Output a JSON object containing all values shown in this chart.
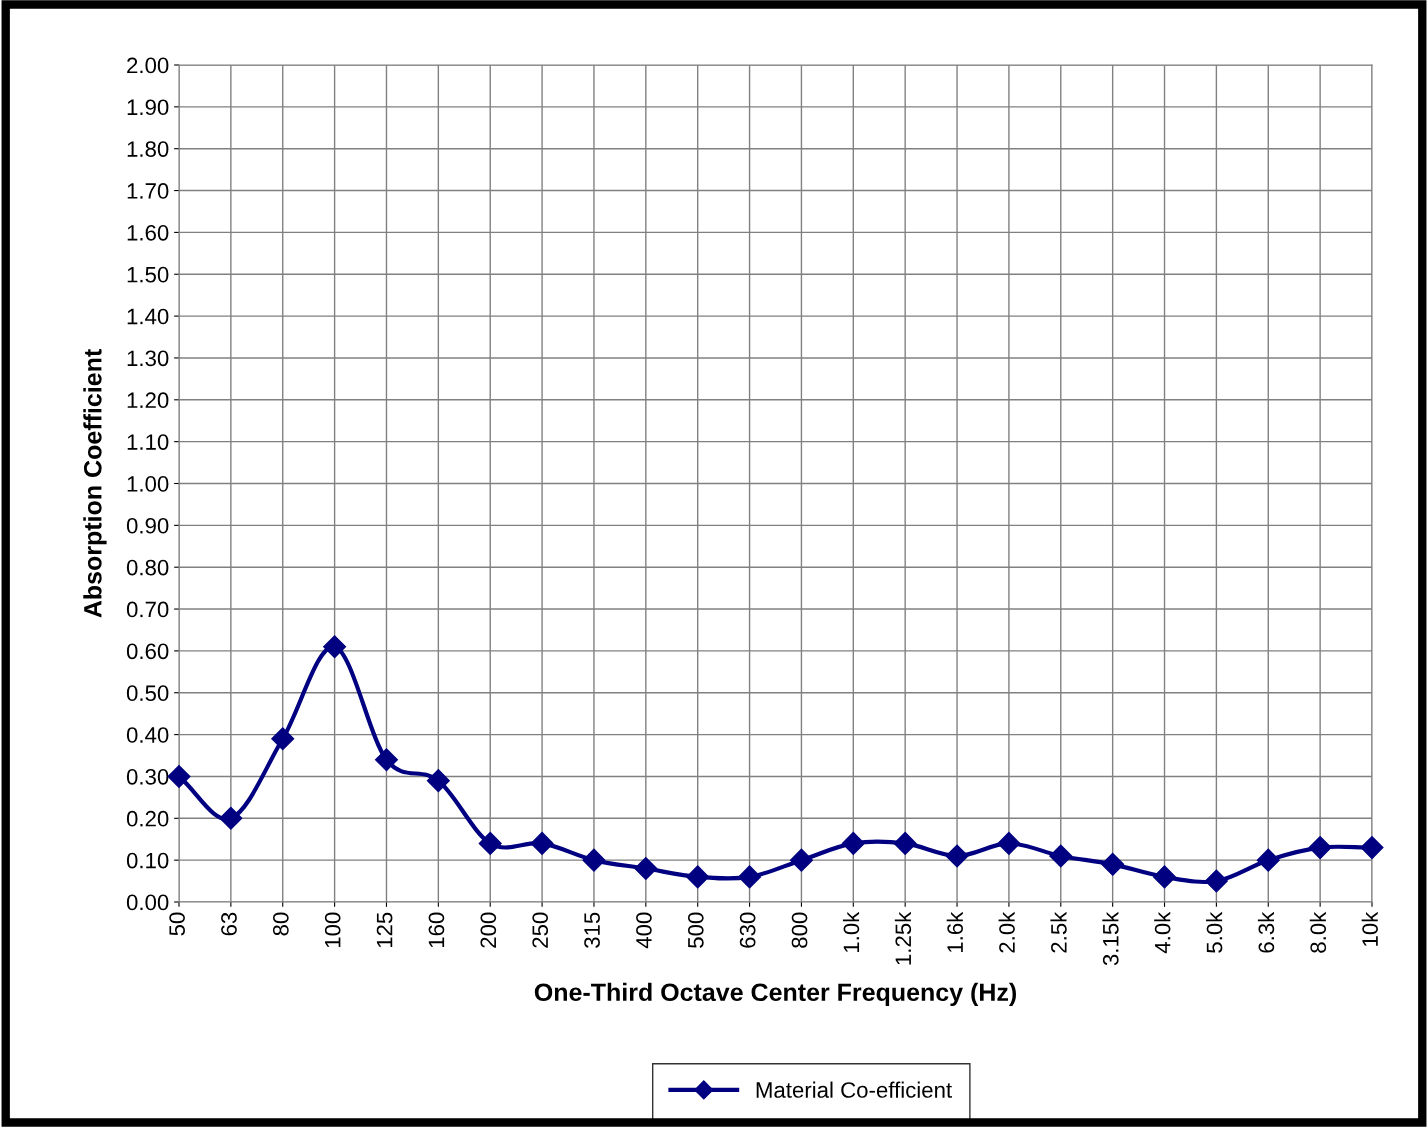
{
  "chart_data": {
    "type": "line",
    "xlabel": "One-Third Octave Center Frequency (Hz)",
    "ylabel": "Absorption Coefficient",
    "categories": [
      "50",
      "63",
      "80",
      "100",
      "125",
      "160",
      "200",
      "250",
      "315",
      "400",
      "500",
      "630",
      "800",
      "1.0k",
      "1.25k",
      "1.6k",
      "2.0k",
      "2.5k",
      "3.15k",
      "4.0k",
      "5.0k",
      "6.3k",
      "8.0k",
      "10k"
    ],
    "series": [
      {
        "name": "Material Co-efficient",
        "color": "#000080",
        "values": [
          0.3,
          0.2,
          0.39,
          0.61,
          0.34,
          0.29,
          0.14,
          0.14,
          0.1,
          0.08,
          0.06,
          0.06,
          0.1,
          0.14,
          0.14,
          0.11,
          0.14,
          0.11,
          0.09,
          0.06,
          0.05,
          0.1,
          0.13,
          0.13
        ]
      }
    ],
    "ylim": [
      0,
      2
    ],
    "yticks": [
      {
        "value": 0,
        "label": "0.00"
      },
      {
        "value": 0.1,
        "label": "0.10"
      },
      {
        "value": 0.2,
        "label": "0.20"
      },
      {
        "value": 0.3,
        "label": "0.30"
      },
      {
        "value": 0.4,
        "label": "0.40"
      },
      {
        "value": 0.5,
        "label": "0.50"
      },
      {
        "value": 0.6,
        "label": "0.60"
      },
      {
        "value": 0.7,
        "label": "0.70"
      },
      {
        "value": 0.8,
        "label": "0.80"
      },
      {
        "value": 0.9,
        "label": "0.90"
      },
      {
        "value": 1,
        "label": "1.00"
      },
      {
        "value": 1.1,
        "label": "1.10"
      },
      {
        "value": 1.2,
        "label": "1.20"
      },
      {
        "value": 1.3,
        "label": "1.30"
      },
      {
        "value": 1.4,
        "label": "1.40"
      },
      {
        "value": 1.5,
        "label": "1.50"
      },
      {
        "value": 1.6,
        "label": "1.60"
      },
      {
        "value": 1.7,
        "label": "1.70"
      },
      {
        "value": 1.8,
        "label": "1.80"
      },
      {
        "value": 1.9,
        "label": "1.90"
      },
      {
        "value": 2,
        "label": "2.00"
      }
    ],
    "grid": true,
    "legend": "bottom",
    "marker": "diamond",
    "line_style": "solid"
  }
}
